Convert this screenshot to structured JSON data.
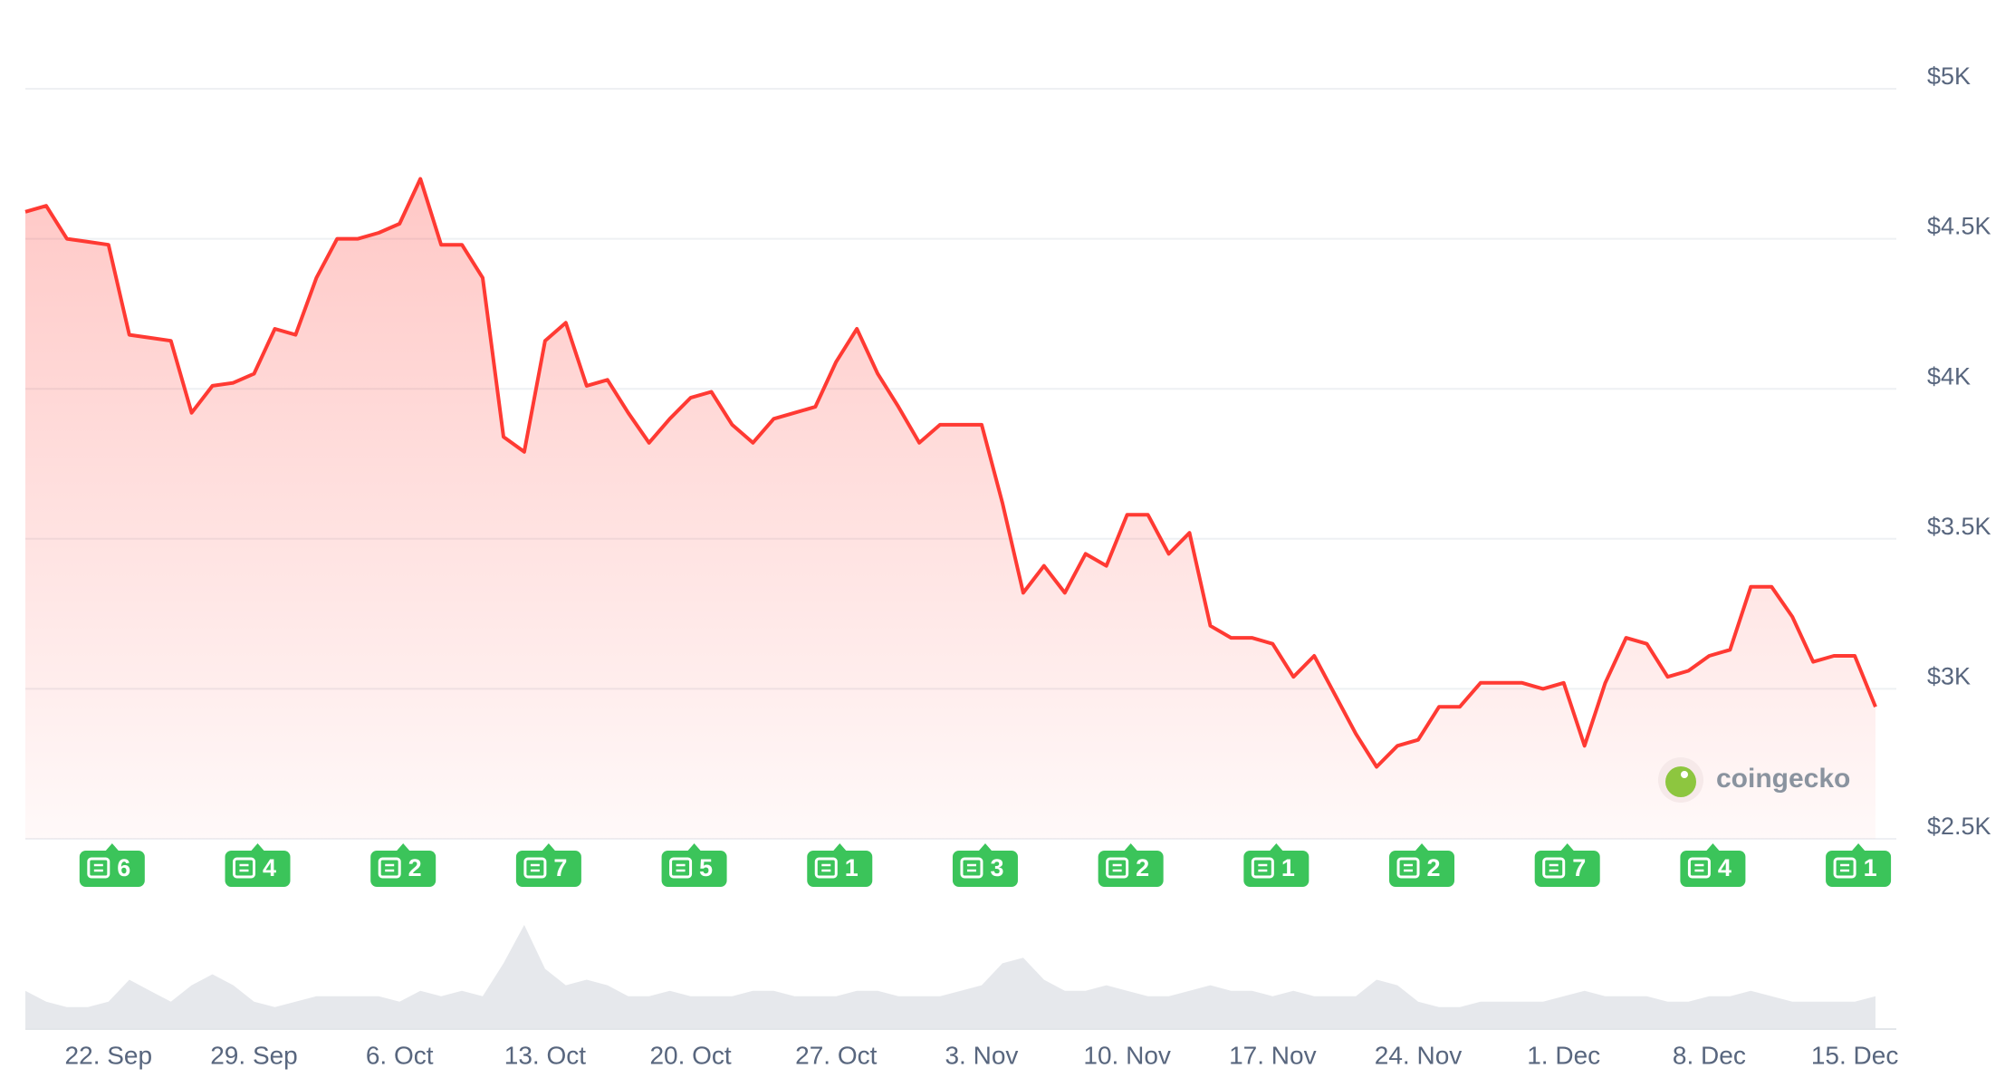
{
  "chart_data": {
    "type": "line",
    "categories": [
      null,
      null,
      null,
      null,
      "22. Sep",
      null,
      null,
      null,
      null,
      null,
      null,
      "29. Sep",
      null,
      null,
      null,
      null,
      null,
      null,
      "6. Oct",
      null,
      null,
      null,
      null,
      null,
      null,
      "13. Oct",
      null,
      null,
      null,
      null,
      null,
      null,
      "20. Oct",
      null,
      null,
      null,
      null,
      null,
      null,
      "27. Oct",
      null,
      null,
      null,
      null,
      null,
      null,
      "3. Nov",
      null,
      null,
      null,
      null,
      null,
      null,
      "10. Nov",
      null,
      null,
      null,
      null,
      null,
      null,
      "17. Nov",
      null,
      null,
      null,
      null,
      null,
      null,
      "24. Nov",
      null,
      null,
      null,
      null,
      null,
      null,
      "1. Dec",
      null,
      null,
      null,
      null,
      null,
      null,
      "8. Dec",
      null,
      null,
      null,
      null,
      null,
      null,
      "15. Dec",
      null
    ],
    "values": [
      4590,
      4610,
      4500,
      4490,
      4480,
      4180,
      4170,
      4160,
      3920,
      4010,
      4020,
      4050,
      4200,
      4180,
      4370,
      4500,
      4500,
      4520,
      4550,
      4700,
      4480,
      4480,
      4370,
      3840,
      3790,
      4160,
      4220,
      4010,
      4030,
      3920,
      3820,
      3900,
      3970,
      3990,
      3880,
      3820,
      3900,
      3920,
      3940,
      4090,
      4200,
      4050,
      3940,
      3820,
      3880,
      3880,
      3880,
      3620,
      3320,
      3410,
      3320,
      3450,
      3410,
      3580,
      3580,
      3450,
      3520,
      3210,
      3170,
      3170,
      3150,
      3040,
      3110,
      2980,
      2850,
      2740,
      2810,
      2830,
      2940,
      2940,
      3020,
      3020,
      3020,
      3000,
      3020,
      2810,
      3020,
      3170,
      3150,
      3040,
      3060,
      3110,
      3130,
      3340,
      3340,
      3240,
      3090,
      3110,
      3110,
      2940
    ],
    "color": "#ff3a33",
    "ylim": [
      2500,
      5000
    ],
    "yticks": [
      {
        "value": 2500,
        "label": "$2.5K"
      },
      {
        "value": 3000,
        "label": "$3K"
      },
      {
        "value": 3500,
        "label": "$3.5K"
      },
      {
        "value": 4000,
        "label": "$4K"
      },
      {
        "value": 4500,
        "label": "$4.5K"
      },
      {
        "value": 5000,
        "label": "$5K"
      }
    ],
    "grid": true,
    "news": [
      6,
      4,
      2,
      7,
      5,
      1,
      3,
      2,
      1,
      2,
      7,
      4,
      1
    ],
    "news_color": "#3bc45a",
    "volume": {
      "color": "#e6e8ec",
      "ylim": [
        0,
        100
      ],
      "values": [
        35,
        25,
        20,
        20,
        25,
        45,
        35,
        25,
        40,
        50,
        40,
        25,
        20,
        25,
        30,
        30,
        30,
        30,
        25,
        35,
        30,
        35,
        30,
        60,
        95,
        55,
        40,
        45,
        40,
        30,
        30,
        35,
        30,
        30,
        30,
        35,
        35,
        30,
        30,
        30,
        35,
        35,
        30,
        30,
        30,
        35,
        40,
        60,
        65,
        45,
        35,
        35,
        40,
        35,
        30,
        30,
        35,
        40,
        35,
        35,
        30,
        35,
        30,
        30,
        30,
        45,
        40,
        25,
        20,
        20,
        25,
        25,
        25,
        25,
        30,
        35,
        30,
        30,
        30,
        25,
        25,
        30,
        30,
        35,
        30,
        25,
        25,
        25,
        25,
        30
      ]
    },
    "watermark": "coingecko"
  }
}
